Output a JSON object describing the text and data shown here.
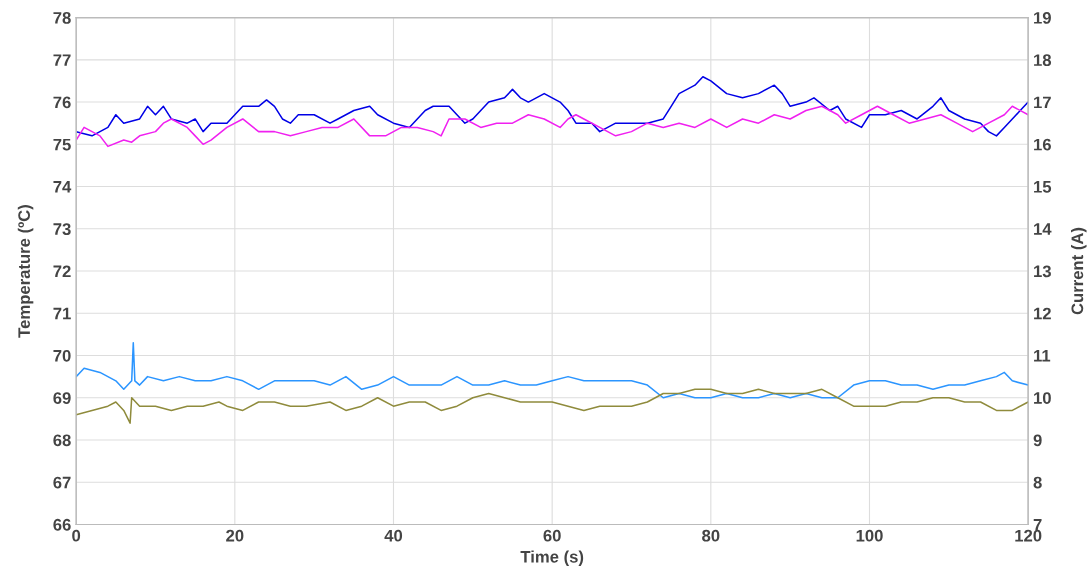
{
  "chart_data": {
    "type": "line",
    "xlabel": "Time (s)",
    "ylabel": "Temperature (ºC)",
    "y2label": "Current (A)",
    "xlim": [
      0,
      120
    ],
    "xticks": [
      0,
      20,
      40,
      60,
      80,
      100,
      120
    ],
    "ylim": [
      66,
      78
    ],
    "yticks": [
      66,
      67,
      68,
      69,
      70,
      71,
      72,
      73,
      74,
      75,
      76,
      77,
      78
    ],
    "y2lim": [
      7,
      19
    ],
    "y2ticks": [
      7,
      8,
      9,
      10,
      11,
      12,
      13,
      14,
      15,
      16,
      17,
      18,
      19
    ],
    "grid": true,
    "legend": false,
    "series": [
      {
        "color": "#0000e6",
        "axis": "y",
        "x": [
          0,
          2,
          4,
          5,
          6,
          8,
          9,
          10,
          11,
          12,
          14,
          15,
          16,
          17,
          19,
          20,
          21,
          23,
          24,
          25,
          26,
          27,
          28,
          30,
          32,
          33,
          35,
          37,
          38,
          40,
          42,
          44,
          45,
          47,
          48,
          49,
          50,
          52,
          54,
          55,
          56,
          57,
          59,
          61,
          62,
          63,
          65,
          66,
          68,
          70,
          72,
          74,
          75,
          76,
          78,
          79,
          80,
          82,
          84,
          86,
          88,
          89,
          90,
          92,
          93,
          95,
          96,
          97,
          99,
          100,
          102,
          104,
          106,
          108,
          109,
          110,
          112,
          114,
          115,
          116,
          117,
          118,
          119,
          120
        ],
        "values": [
          75.3,
          75.2,
          75.4,
          75.7,
          75.5,
          75.6,
          75.9,
          75.7,
          75.9,
          75.6,
          75.5,
          75.6,
          75.3,
          75.5,
          75.5,
          75.7,
          75.9,
          75.9,
          76.05,
          75.9,
          75.6,
          75.5,
          75.7,
          75.7,
          75.5,
          75.6,
          75.8,
          75.9,
          75.7,
          75.5,
          75.4,
          75.8,
          75.9,
          75.9,
          75.7,
          75.5,
          75.6,
          76.0,
          76.1,
          76.3,
          76.1,
          76.0,
          76.2,
          76.0,
          75.8,
          75.5,
          75.5,
          75.3,
          75.5,
          75.5,
          75.5,
          75.6,
          75.9,
          76.2,
          76.4,
          76.6,
          76.5,
          76.2,
          76.1,
          76.2,
          76.4,
          76.2,
          75.9,
          76.0,
          76.1,
          75.8,
          75.9,
          75.6,
          75.4,
          75.7,
          75.7,
          75.8,
          75.6,
          75.9,
          76.1,
          75.8,
          75.6,
          75.5,
          75.3,
          75.2,
          75.4,
          75.6,
          75.8,
          76.0
        ]
      },
      {
        "color": "#f020f0",
        "axis": "y",
        "x": [
          0,
          1,
          3,
          4,
          6,
          7,
          8,
          10,
          11,
          12,
          14,
          15,
          16,
          17,
          19,
          21,
          23,
          25,
          27,
          29,
          31,
          33,
          35,
          37,
          39,
          41,
          43,
          45,
          46,
          47,
          49,
          51,
          53,
          55,
          57,
          59,
          61,
          62,
          63,
          64,
          66,
          68,
          70,
          72,
          74,
          76,
          78,
          80,
          82,
          84,
          86,
          88,
          90,
          92,
          94,
          96,
          97,
          99,
          101,
          103,
          105,
          107,
          109,
          111,
          113,
          115,
          117,
          118,
          120
        ],
        "values": [
          75.1,
          75.4,
          75.2,
          74.95,
          75.1,
          75.05,
          75.2,
          75.3,
          75.5,
          75.6,
          75.4,
          75.2,
          75.0,
          75.1,
          75.4,
          75.6,
          75.3,
          75.3,
          75.2,
          75.3,
          75.4,
          75.4,
          75.6,
          75.2,
          75.2,
          75.4,
          75.4,
          75.3,
          75.2,
          75.6,
          75.6,
          75.4,
          75.5,
          75.5,
          75.7,
          75.6,
          75.4,
          75.6,
          75.7,
          75.6,
          75.4,
          75.2,
          75.3,
          75.5,
          75.4,
          75.5,
          75.4,
          75.6,
          75.4,
          75.6,
          75.5,
          75.7,
          75.6,
          75.8,
          75.9,
          75.7,
          75.5,
          75.7,
          75.9,
          75.7,
          75.5,
          75.6,
          75.7,
          75.5,
          75.3,
          75.5,
          75.7,
          75.9,
          75.7
        ]
      },
      {
        "color": "#2b95ff",
        "axis": "y2",
        "x": [
          0,
          1,
          3,
          5,
          6,
          7,
          7.2,
          7.4,
          8,
          9,
          11,
          13,
          15,
          17,
          19,
          21,
          23,
          25,
          27,
          30,
          32,
          34,
          36,
          38,
          40,
          42,
          44,
          46,
          48,
          50,
          52,
          54,
          56,
          58,
          60,
          62,
          64,
          66,
          68,
          70,
          72,
          74,
          76,
          78,
          80,
          82,
          84,
          86,
          88,
          90,
          92,
          94,
          96,
          98,
          100,
          102,
          104,
          106,
          108,
          110,
          112,
          114,
          116,
          117,
          118,
          120
        ],
        "values": [
          10.5,
          10.7,
          10.6,
          10.4,
          10.2,
          10.4,
          11.3,
          10.4,
          10.3,
          10.5,
          10.4,
          10.5,
          10.4,
          10.4,
          10.5,
          10.4,
          10.2,
          10.4,
          10.4,
          10.4,
          10.3,
          10.5,
          10.2,
          10.3,
          10.5,
          10.3,
          10.3,
          10.3,
          10.5,
          10.3,
          10.3,
          10.4,
          10.3,
          10.3,
          10.4,
          10.5,
          10.4,
          10.4,
          10.4,
          10.4,
          10.3,
          10.0,
          10.1,
          10.0,
          10.0,
          10.1,
          10.0,
          10.0,
          10.1,
          10.0,
          10.1,
          10.0,
          10.0,
          10.3,
          10.4,
          10.4,
          10.3,
          10.3,
          10.2,
          10.3,
          10.3,
          10.4,
          10.5,
          10.6,
          10.4,
          10.3
        ]
      },
      {
        "color": "#8f8b3c",
        "axis": "y2",
        "x": [
          0,
          2,
          4,
          5,
          6,
          6.8,
          7,
          8,
          10,
          12,
          14,
          16,
          18,
          19,
          21,
          23,
          25,
          27,
          29,
          32,
          34,
          36,
          38,
          40,
          42,
          44,
          46,
          48,
          50,
          52,
          54,
          56,
          58,
          60,
          62,
          64,
          66,
          68,
          70,
          72,
          74,
          76,
          78,
          80,
          82,
          84,
          86,
          88,
          90,
          92,
          94,
          96,
          98,
          100,
          102,
          104,
          106,
          108,
          110,
          112,
          114,
          116,
          118,
          120
        ],
        "values": [
          9.6,
          9.7,
          9.8,
          9.9,
          9.7,
          9.4,
          10.0,
          9.8,
          9.8,
          9.7,
          9.8,
          9.8,
          9.9,
          9.8,
          9.7,
          9.9,
          9.9,
          9.8,
          9.8,
          9.9,
          9.7,
          9.8,
          10.0,
          9.8,
          9.9,
          9.9,
          9.7,
          9.8,
          10.0,
          10.1,
          10.0,
          9.9,
          9.9,
          9.9,
          9.8,
          9.7,
          9.8,
          9.8,
          9.8,
          9.9,
          10.1,
          10.1,
          10.2,
          10.2,
          10.1,
          10.1,
          10.2,
          10.1,
          10.1,
          10.1,
          10.2,
          10.0,
          9.8,
          9.8,
          9.8,
          9.9,
          9.9,
          10.0,
          10.0,
          9.9,
          9.9,
          9.7,
          9.7,
          9.9
        ]
      }
    ]
  }
}
